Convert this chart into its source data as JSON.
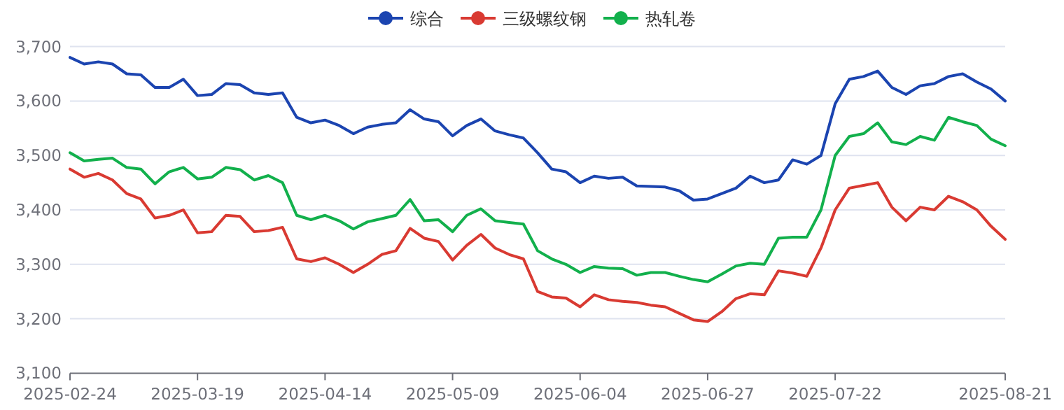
{
  "chart_data": {
    "type": "line",
    "categories": [
      "2025-02-24",
      null,
      null,
      null,
      null,
      null,
      null,
      null,
      null,
      "2025-03-19",
      null,
      null,
      null,
      null,
      null,
      null,
      null,
      null,
      "2025-04-14",
      null,
      null,
      null,
      null,
      null,
      null,
      null,
      null,
      "2025-05-09",
      null,
      null,
      null,
      null,
      null,
      null,
      null,
      null,
      "2025-06-04",
      null,
      null,
      null,
      null,
      null,
      null,
      null,
      null,
      "2025-06-27",
      null,
      null,
      null,
      null,
      null,
      null,
      null,
      null,
      "2025-07-22",
      null,
      null,
      null,
      null,
      null,
      null,
      null,
      null,
      null,
      null,
      null,
      "2025-08-21"
    ],
    "series": [
      {
        "name": "综合",
        "color": "#1b44b0",
        "values": [
          3680,
          3668,
          3672,
          3668,
          3650,
          3648,
          3625,
          3625,
          3640,
          3610,
          3612,
          3632,
          3630,
          3615,
          3612,
          3615,
          3570,
          3560,
          3565,
          3555,
          3540,
          3552,
          3557,
          3560,
          3584,
          3567,
          3562,
          3536,
          3555,
          3567,
          3545,
          3538,
          3532,
          3505,
          3475,
          3470,
          3450,
          3462,
          3458,
          3460,
          3444,
          3443,
          3442,
          3435,
          3418,
          3420,
          3430,
          3440,
          3462,
          3450,
          3455,
          3492,
          3484,
          3500,
          3595,
          3640,
          3645,
          3655,
          3625,
          3612,
          3628,
          3632,
          3645,
          3650,
          3635,
          3622,
          3600
        ]
      },
      {
        "name": "三级螺纹钢",
        "color": "#d93a32",
        "values": [
          3475,
          3460,
          3467,
          3455,
          3430,
          3420,
          3385,
          3390,
          3400,
          3358,
          3360,
          3390,
          3388,
          3360,
          3362,
          3368,
          3310,
          3305,
          3312,
          3300,
          3285,
          3300,
          3318,
          3325,
          3366,
          3348,
          3342,
          3308,
          3335,
          3355,
          3330,
          3318,
          3310,
          3250,
          3240,
          3238,
          3222,
          3244,
          3235,
          3232,
          3230,
          3225,
          3222,
          3210,
          3198,
          3195,
          3213,
          3237,
          3246,
          3244,
          3288,
          3284,
          3278,
          3330,
          3400,
          3440,
          3445,
          3450,
          3405,
          3380,
          3405,
          3400,
          3425,
          3415,
          3400,
          3370,
          3346
        ]
      },
      {
        "name": "热轧卷",
        "color": "#12b04c",
        "values": [
          3505,
          3490,
          3493,
          3495,
          3478,
          3475,
          3448,
          3470,
          3478,
          3457,
          3460,
          3478,
          3474,
          3455,
          3463,
          3450,
          3390,
          3382,
          3390,
          3380,
          3365,
          3378,
          3384,
          3390,
          3419,
          3380,
          3382,
          3360,
          3390,
          3402,
          3380,
          3377,
          3374,
          3325,
          3310,
          3300,
          3285,
          3296,
          3293,
          3292,
          3280,
          3285,
          3285,
          3278,
          3272,
          3268,
          3282,
          3297,
          3302,
          3300,
          3348,
          3350,
          3350,
          3400,
          3500,
          3535,
          3540,
          3560,
          3525,
          3520,
          3535,
          3528,
          3570,
          3562,
          3555,
          3530,
          3518
        ]
      }
    ],
    "ylim": [
      3100,
      3700
    ],
    "yticks": [
      {
        "value": 3100,
        "label": "3,100"
      },
      {
        "value": 3200,
        "label": "3,200"
      },
      {
        "value": 3300,
        "label": "3,300"
      },
      {
        "value": 3400,
        "label": "3,400"
      },
      {
        "value": 3500,
        "label": "3,500"
      },
      {
        "value": 3600,
        "label": "3,600"
      },
      {
        "value": 3700,
        "label": "3,700"
      }
    ],
    "grid": "y",
    "legend": "top"
  }
}
